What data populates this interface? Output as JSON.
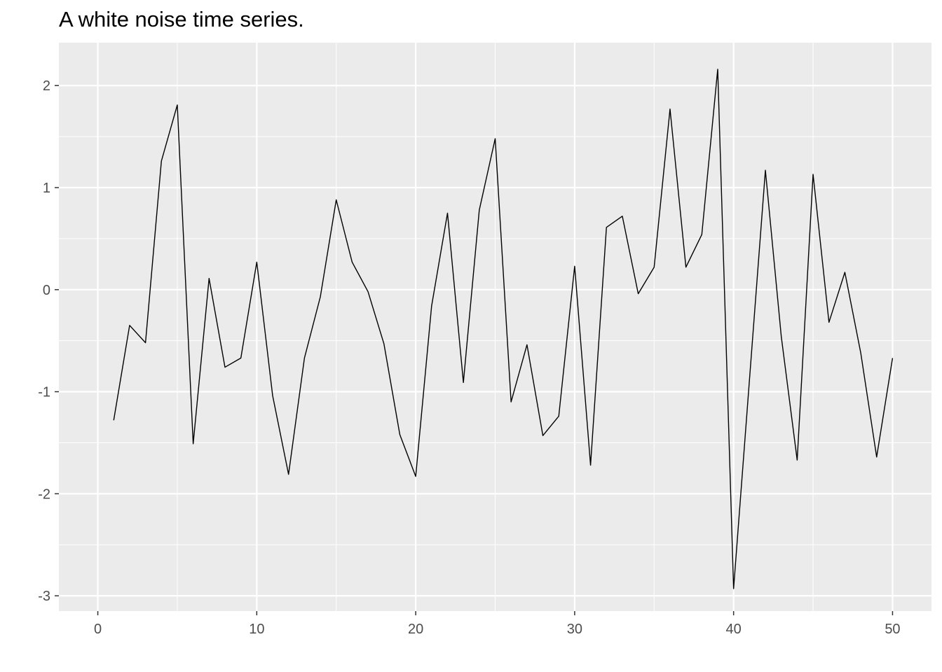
{
  "chart_data": {
    "type": "line",
    "title": "A white noise time series.",
    "xlabel": "",
    "ylabel": "",
    "xlim": [
      -2.45,
      52.45
    ],
    "ylim": [
      -3.15,
      2.42
    ],
    "x_ticks": [
      0,
      10,
      20,
      30,
      40,
      50
    ],
    "x_tick_labels": [
      "0",
      "10",
      "20",
      "30",
      "40",
      "50"
    ],
    "y_ticks": [
      -3,
      -2,
      -1,
      0,
      1,
      2
    ],
    "y_tick_labels": [
      "-3",
      "-2",
      "-1",
      "0",
      "1",
      "2"
    ],
    "grid": true,
    "colors": {
      "panel": "#ebebeb",
      "grid": "#ffffff",
      "line": "#000000",
      "tick_text": "#4d4d4d"
    },
    "series": [
      {
        "x": [
          1,
          2,
          3,
          4,
          5,
          6,
          7,
          8,
          9,
          10,
          11,
          12,
          13,
          14,
          15,
          16,
          17,
          18,
          19,
          20,
          21,
          22,
          23,
          24,
          25,
          26,
          27,
          28,
          29,
          30,
          31,
          32,
          33,
          34,
          35,
          36,
          37,
          38,
          39,
          40,
          41,
          42,
          43,
          44,
          45,
          46,
          47,
          48,
          49,
          50
        ],
        "values": [
          -1.28,
          -0.35,
          -0.52,
          1.26,
          1.81,
          -1.51,
          0.11,
          -0.76,
          -0.67,
          0.27,
          -1.04,
          -1.81,
          -0.67,
          -0.07,
          0.88,
          0.27,
          -0.02,
          -0.53,
          -1.42,
          -1.83,
          -0.16,
          0.75,
          -0.91,
          0.78,
          1.48,
          -1.1,
          -0.54,
          -1.43,
          -1.24,
          0.23,
          -1.72,
          0.61,
          0.72,
          -0.04,
          0.22,
          1.77,
          0.22,
          0.54,
          2.16,
          -2.93,
          -0.88,
          1.17,
          -0.46,
          -1.67,
          1.13,
          -0.32,
          0.17,
          -0.62,
          -1.64,
          -0.67
        ]
      }
    ]
  }
}
